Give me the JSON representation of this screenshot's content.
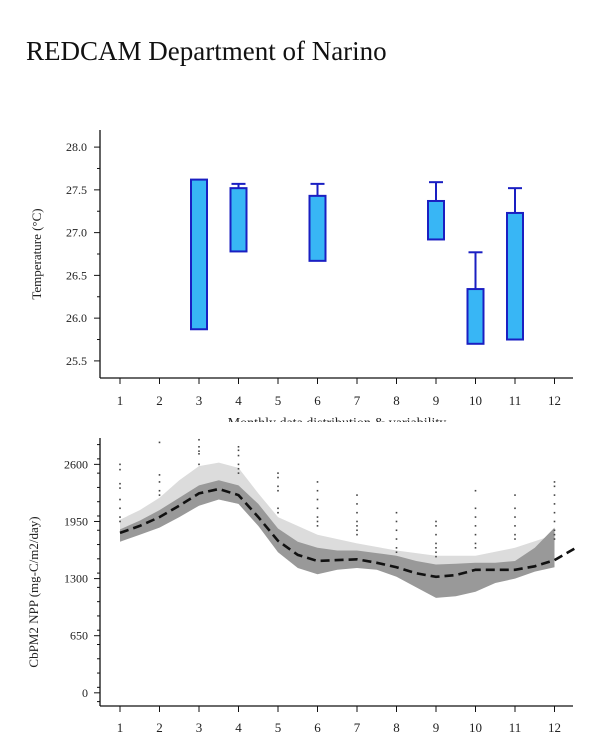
{
  "page": {
    "title": "REDCAM Department of Narino"
  },
  "colors": {
    "box_fill": "#38b6f5",
    "box_stroke": "#1a1fc2",
    "band_light": "#dcdcdc",
    "band_dark": "#999999",
    "mean_line": "#111111"
  },
  "chart_data": [
    {
      "type": "box",
      "ylabel": "Temperature (°C)",
      "xlabel": "Monthly data distribution & variability",
      "categories": [
        "1",
        "2",
        "3",
        "4",
        "5",
        "6",
        "7",
        "8",
        "9",
        "10",
        "11",
        "12"
      ],
      "y_ticks": [
        "25.5",
        "26.0",
        "26.5",
        "27.0",
        "27.5",
        "28.0"
      ],
      "ylim": [
        25.3,
        28.2
      ],
      "boxes": [
        {
          "month": 3,
          "q1": 25.87,
          "q3": 27.62
        },
        {
          "month": 4,
          "q1": 26.78,
          "q3": 27.52,
          "whisker_high": 27.57
        },
        {
          "month": 6,
          "q1": 26.67,
          "q3": 27.43,
          "whisker_high": 27.57
        },
        {
          "month": 9,
          "q1": 26.92,
          "q3": 27.37,
          "whisker_high": 27.59
        },
        {
          "month": 10,
          "q1": 25.7,
          "q3": 26.34,
          "whisker_high": 26.77
        },
        {
          "month": 11,
          "q1": 25.75,
          "q3": 27.23,
          "whisker_high": 27.52
        }
      ]
    },
    {
      "type": "line",
      "ylabel": "CbPM2 NPP (mg-C/m2/day)",
      "categories": [
        "1",
        "2",
        "3",
        "4",
        "5",
        "6",
        "7",
        "8",
        "9",
        "10",
        "11",
        "12"
      ],
      "y_ticks": [
        "0",
        "650",
        "1300",
        "1950",
        "2600"
      ],
      "ylim": [
        -150,
        2900
      ],
      "series": [
        {
          "role": "mean",
          "x": [
            1,
            1.5,
            2,
            2.5,
            3,
            3.5,
            4,
            4.5,
            5,
            5.5,
            6,
            6.5,
            7,
            7.5,
            8,
            8.5,
            9,
            9.5,
            10,
            10.5,
            11,
            11.5,
            12,
            12.5
          ],
          "values": [
            1820,
            1900,
            2000,
            2130,
            2270,
            2320,
            2250,
            2000,
            1730,
            1570,
            1500,
            1510,
            1520,
            1480,
            1430,
            1360,
            1320,
            1340,
            1400,
            1400,
            1400,
            1440,
            1510,
            1640
          ]
        },
        {
          "role": "upper-light",
          "x": [
            1,
            1.5,
            2,
            2.5,
            3,
            3.5,
            4,
            4.5,
            5,
            6,
            7,
            8,
            9,
            10,
            11,
            12
          ],
          "values": [
            1970,
            2080,
            2220,
            2420,
            2580,
            2620,
            2560,
            2270,
            2000,
            1800,
            1700,
            1620,
            1560,
            1560,
            1650,
            1800
          ]
        },
        {
          "role": "lower-light",
          "x": [
            1,
            1.5,
            2,
            2.5,
            3,
            3.5,
            4,
            4.5,
            5,
            6,
            7,
            8,
            9,
            10,
            11,
            12
          ],
          "values": [
            1760,
            1830,
            1920,
            2030,
            2140,
            2200,
            2150,
            1900,
            1680,
            1520,
            1460,
            1430,
            1390,
            1420,
            1480,
            1550
          ]
        },
        {
          "role": "upper-dark",
          "x": [
            1,
            1.5,
            2,
            2.5,
            3,
            3.5,
            4,
            4.5,
            5,
            5.5,
            6,
            6.5,
            7,
            7.5,
            8,
            8.5,
            9,
            9.5,
            10,
            10.5,
            11,
            11.5,
            12
          ],
          "values": [
            1860,
            1960,
            2080,
            2220,
            2360,
            2420,
            2360,
            2150,
            1870,
            1720,
            1650,
            1620,
            1620,
            1590,
            1560,
            1500,
            1460,
            1470,
            1480,
            1480,
            1500,
            1650,
            1880
          ]
        },
        {
          "role": "lower-dark",
          "x": [
            1,
            1.5,
            2,
            2.5,
            3,
            3.5,
            4,
            4.5,
            5,
            5.5,
            6,
            6.5,
            7,
            7.5,
            8,
            8.5,
            9,
            9.5,
            10,
            10.5,
            11,
            11.5,
            12
          ],
          "values": [
            1720,
            1800,
            1880,
            2000,
            2130,
            2200,
            2150,
            1900,
            1600,
            1420,
            1350,
            1400,
            1420,
            1400,
            1320,
            1200,
            1080,
            1100,
            1150,
            1250,
            1300,
            1380,
            1430
          ]
        }
      ],
      "scatter": [
        {
          "month": 1,
          "values": [
            2600,
            2540,
            2380,
            2330,
            2200,
            2100,
            2000,
            1950
          ]
        },
        {
          "month": 2,
          "values": [
            2850,
            2480,
            2400,
            2300,
            2250
          ]
        },
        {
          "month": 3,
          "values": [
            2880,
            2800,
            2750,
            2720,
            2600
          ]
        },
        {
          "month": 4,
          "values": [
            2800,
            2760,
            2700,
            2600,
            2550,
            2500
          ]
        },
        {
          "month": 5,
          "values": [
            2500,
            2450,
            2350,
            2300,
            2100,
            2050
          ]
        },
        {
          "month": 6,
          "values": [
            2400,
            2300,
            2200,
            2100,
            2000,
            1950,
            1900
          ]
        },
        {
          "month": 7,
          "values": [
            2250,
            2150,
            2050,
            1950,
            1900,
            1850,
            1800
          ]
        },
        {
          "month": 8,
          "values": [
            2050,
            1950,
            1850,
            1750,
            1650,
            1600
          ]
        },
        {
          "month": 9,
          "values": [
            1950,
            1900,
            1800,
            1700,
            1650,
            1600,
            1550
          ]
        },
        {
          "month": 10,
          "values": [
            2300,
            2100,
            2000,
            1900,
            1800,
            1700,
            1650
          ]
        },
        {
          "month": 11,
          "values": [
            2250,
            2100,
            2000,
            1900,
            1800,
            1750
          ]
        },
        {
          "month": 12,
          "values": [
            2400,
            2350,
            2250,
            2150,
            2050,
            1950,
            1850,
            1800,
            1750
          ]
        }
      ]
    }
  ]
}
